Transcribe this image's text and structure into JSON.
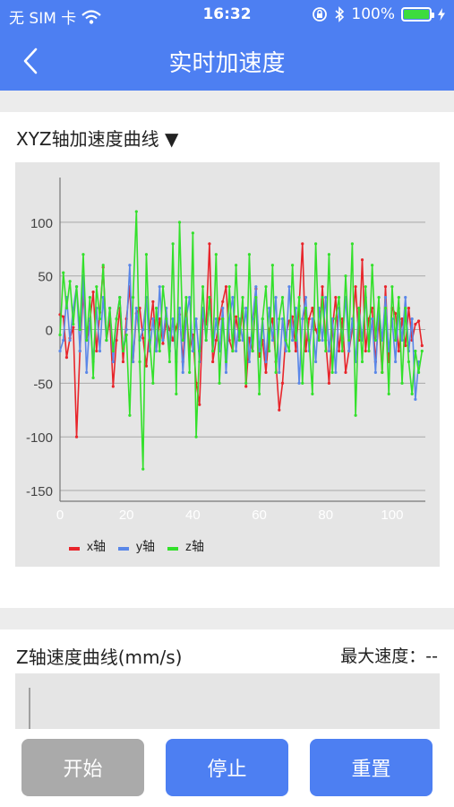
{
  "status_bar": {
    "carrier": "无 SIM 卡",
    "time": "16:32",
    "battery_text": "100%",
    "battery_level": 1.0
  },
  "nav": {
    "title": "实时加速度"
  },
  "accel_section": {
    "title": "XYZ轴加速度曲线 ▼"
  },
  "z_section": {
    "title": "Z轴速度曲线(mm/s)",
    "max_speed": "最大速度：--"
  },
  "buttons": {
    "start": "开始",
    "stop": "停止",
    "reset": "重置"
  },
  "colors": {
    "brand": "#4d7ff2",
    "x": "#e8252b",
    "y": "#5a87e8",
    "z": "#33e02b",
    "disabled": "#aaaaaa"
  },
  "chart_data": {
    "type": "line",
    "x_ticks": [
      "0",
      "20",
      "40",
      "60",
      "80",
      "100"
    ],
    "y_ticks": [
      "100",
      "50",
      "0",
      "-50",
      "-100",
      "-150"
    ],
    "xlim": [
      0,
      110
    ],
    "ylim": [
      -160,
      135
    ],
    "grid": true,
    "legend_position": "bottom-left",
    "series": [
      {
        "name": "x轴",
        "color": "#e8252b",
        "values": [
          14,
          12,
          -26,
          -8,
          2,
          -100,
          -20,
          34,
          -10,
          8,
          35,
          -20,
          16,
          58,
          -10,
          10,
          -53,
          -10,
          20,
          -30,
          10,
          40,
          -30,
          15,
          20,
          -8,
          -34,
          0,
          26,
          -20,
          10,
          -13,
          8,
          0,
          -10,
          2,
          14,
          -30,
          20,
          -20,
          -5,
          -50,
          -70,
          10,
          5,
          80,
          -30,
          -10,
          10,
          26,
          40,
          -10,
          -20,
          12,
          -10,
          20,
          -53,
          -8,
          -20,
          38,
          -25,
          -10,
          -40,
          0,
          10,
          -30,
          -75,
          -50,
          -5,
          8,
          12,
          -20,
          22,
          80,
          -20,
          10,
          20,
          0,
          -10,
          40,
          -10,
          -50,
          0,
          30,
          -20,
          10,
          -40,
          -20,
          0,
          40,
          -10,
          65,
          -20,
          10,
          20,
          -30,
          10,
          -40,
          40,
          -30,
          20,
          15,
          -20,
          10,
          -15,
          20,
          -10,
          5,
          8,
          -15
        ]
      },
      {
        "name": "y轴",
        "color": "#5a87e8",
        "values": [
          -20,
          -10,
          30,
          -10,
          20,
          40,
          -20,
          50,
          -40,
          10,
          -30,
          20,
          -20,
          30,
          -10,
          20,
          -30,
          10,
          30,
          -20,
          0,
          60,
          -30,
          20,
          -10,
          0,
          30,
          -20,
          10,
          -20,
          40,
          -10,
          20,
          -20,
          10,
          -30,
          20,
          -40,
          10,
          30,
          -20,
          10,
          -30,
          20,
          -10,
          30,
          -20,
          10,
          -20,
          20,
          -40,
          10,
          30,
          -20,
          10,
          -10,
          20,
          -30,
          10,
          40,
          -20,
          10,
          -30,
          20,
          -10,
          30,
          -40,
          10,
          -20,
          40,
          -10,
          20,
          -50,
          10,
          30,
          -20,
          10,
          -30,
          20,
          -10,
          30,
          -20,
          10,
          -40,
          20,
          -10,
          30,
          -20,
          10,
          -30,
          20,
          -10,
          30,
          -20,
          10,
          -40,
          20,
          -10,
          30,
          -20,
          10,
          -30,
          20,
          -10,
          30,
          -20,
          10,
          -65,
          -30
        ]
      },
      {
        "name": "z轴",
        "color": "#33e02b",
        "values": [
          -5,
          53,
          20,
          45,
          5,
          40,
          0,
          70,
          -10,
          30,
          -45,
          40,
          10,
          60,
          -10,
          20,
          -20,
          10,
          30,
          -20,
          -5,
          -80,
          30,
          110,
          -30,
          -130,
          70,
          -10,
          -50,
          20,
          -20,
          40,
          10,
          -30,
          80,
          -60,
          100,
          -10,
          30,
          -40,
          90,
          -100,
          -20,
          40,
          -10,
          30,
          -20,
          70,
          -50,
          10,
          -30,
          40,
          -20,
          60,
          -10,
          30,
          -50,
          70,
          -20,
          30,
          -60,
          10,
          40,
          -20,
          60,
          -40,
          10,
          30,
          -10,
          -20,
          60,
          -10,
          30,
          -50,
          20,
          -10,
          -60,
          80,
          -10,
          30,
          -20,
          70,
          -40,
          10,
          30,
          -20,
          50,
          -10,
          80,
          -80,
          20,
          -30,
          40,
          -20,
          60,
          -10,
          30,
          -40,
          20,
          -60,
          40,
          -10,
          30,
          -50,
          20,
          -30,
          -60,
          -20,
          -40,
          -20
        ]
      }
    ]
  }
}
